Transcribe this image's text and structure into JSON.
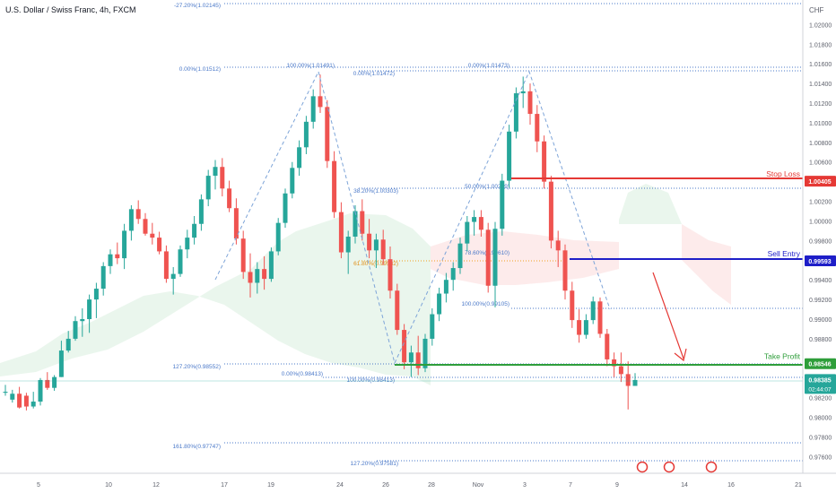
{
  "header": {
    "title": "U.S. Dollar / Swiss Franc, 4h, FXCM"
  },
  "chart_data": {
    "type": "candlestick",
    "currency_label": "CHF",
    "x_tick_labels": [
      "5",
      "10",
      "12",
      "17",
      "19",
      "24",
      "26",
      "28",
      "Nov",
      "3",
      "7",
      "9",
      "14",
      "16",
      "21"
    ],
    "y_tick_labels": [
      "1.02000",
      "1.01800",
      "1.01600",
      "1.01400",
      "1.01200",
      "1.01000",
      "1.00800",
      "1.00600",
      "1.00200",
      "1.00000",
      "0.99800",
      "0.99400",
      "0.99200",
      "0.99000",
      "0.98800",
      "0.98200",
      "0.98000",
      "0.97800",
      "0.97600"
    ],
    "ylim": [
      0.9743,
      1.0225
    ],
    "price_tags": [
      {
        "label": "Stop Loss",
        "value": "1.00405",
        "color": "#e53935"
      },
      {
        "label": "Sell Entry",
        "value": "0.99593",
        "color": "#1e1ec8"
      },
      {
        "label": "Take Profit",
        "value": "0.98546",
        "color": "#2e9e3a"
      },
      {
        "label": "",
        "value": "0.98385",
        "sub": "02:44:07",
        "color": "#26a69a"
      }
    ],
    "fib_labels": [
      "-27.20%(1.02145)",
      "0.00%(1.01512)",
      "100.00%(1.01491)",
      "0.00%(1.01472)",
      "0.00%(1.01473)",
      "38.20%(1.00303)",
      "50.00%(1.00289)",
      "61.80%(0.99582)",
      "78.60%(0.99610)",
      "100.00%(0.99105)",
      "127.20%(0.98552)",
      "0.00%(0.98413)",
      "100.00%(0.98413)",
      "161.80%(0.97747)",
      "127.20%(0.97581)"
    ],
    "candles": [
      [
        0.9825,
        0.9833,
        0.9822,
        0.9826
      ],
      [
        0.9818,
        0.9828,
        0.9815,
        0.9824
      ],
      [
        0.9824,
        0.9831,
        0.9809,
        0.981
      ],
      [
        0.9822,
        0.9825,
        0.9807,
        0.9811
      ],
      [
        0.9811,
        0.9826,
        0.9809,
        0.9816
      ],
      [
        0.9816,
        0.984,
        0.9812,
        0.9838
      ],
      [
        0.9838,
        0.9846,
        0.9828,
        0.983
      ],
      [
        0.983,
        0.9843,
        0.9827,
        0.9841
      ],
      [
        0.9841,
        0.9878,
        0.9841,
        0.9868
      ],
      [
        0.9868,
        0.9888,
        0.9866,
        0.988
      ],
      [
        0.988,
        0.9903,
        0.9878,
        0.9898
      ],
      [
        0.9898,
        0.9911,
        0.9882,
        0.99
      ],
      [
        0.99,
        0.9925,
        0.9886,
        0.992
      ],
      [
        0.992,
        0.9937,
        0.9901,
        0.9931
      ],
      [
        0.9931,
        0.9958,
        0.9924,
        0.9954
      ],
      [
        0.9954,
        0.9971,
        0.9946,
        0.9966
      ],
      [
        0.9966,
        0.9978,
        0.9956,
        0.9962
      ],
      [
        0.9962,
        0.9997,
        0.9951,
        0.999
      ],
      [
        0.999,
        1.0016,
        0.998,
        1.0012
      ],
      [
        1.0012,
        1.0021,
        0.9997,
        1.0002
      ],
      [
        1.0002,
        1.0008,
        0.9985,
        0.9987
      ],
      [
        0.9987,
        0.9998,
        0.9976,
        0.9983
      ],
      [
        0.9983,
        0.9989,
        0.9966,
        0.9969
      ],
      [
        0.9969,
        0.9975,
        0.9937,
        0.9941
      ],
      [
        0.9941,
        0.9953,
        0.9925,
        0.9946
      ],
      [
        0.9946,
        0.9975,
        0.9943,
        0.9971
      ],
      [
        0.9971,
        0.9991,
        0.9962,
        0.9983
      ],
      [
        0.9983,
        1.0005,
        0.9976,
        0.9997
      ],
      [
        0.9997,
        1.0027,
        0.999,
        1.0022
      ],
      [
        1.0022,
        1.0052,
        1.0015,
        1.0046
      ],
      [
        1.0046,
        1.0062,
        1.0032,
        1.0055
      ],
      [
        1.0055,
        1.0064,
        1.0025,
        1.0033
      ],
      [
        1.0033,
        1.0041,
        1.0009,
        1.0013
      ],
      [
        1.0013,
        1.0023,
        0.9976,
        0.9982
      ],
      [
        0.9982,
        0.999,
        0.9941,
        0.9948
      ],
      [
        0.9948,
        0.9967,
        0.9922,
        0.9937
      ],
      [
        0.9937,
        0.9958,
        0.9926,
        0.9951
      ],
      [
        0.9951,
        0.9964,
        0.993,
        0.9941
      ],
      [
        0.9941,
        0.9973,
        0.9938,
        0.9969
      ],
      [
        0.9969,
        1.0003,
        0.9965,
        0.9998
      ],
      [
        0.9998,
        1.0033,
        0.9993,
        1.0028
      ],
      [
        1.0028,
        1.006,
        1.0023,
        1.0054
      ],
      [
        1.0054,
        1.0082,
        1.0046,
        1.0075
      ],
      [
        1.0075,
        1.0107,
        1.0068,
        1.0101
      ],
      [
        1.0101,
        1.0134,
        1.0094,
        1.0127
      ],
      [
        1.0127,
        1.0149,
        1.011,
        1.0116
      ],
      [
        1.0116,
        1.0123,
        1.0054,
        1.0061
      ],
      [
        1.0061,
        1.0071,
        1.0003,
        1.0009
      ],
      [
        1.0009,
        1.0019,
        0.9962,
        0.9968
      ],
      [
        0.9968,
        0.999,
        0.9946,
        0.9984
      ],
      [
        0.9984,
        1.0016,
        0.9977,
        1.001
      ],
      [
        1.001,
        1.0022,
        0.998,
        0.9987
      ],
      [
        0.9987,
        1.0002,
        0.9962,
        0.997
      ],
      [
        0.997,
        0.9987,
        0.9952,
        0.9981
      ],
      [
        0.9981,
        0.9991,
        0.9955,
        0.9961
      ],
      [
        0.9961,
        0.9974,
        0.9921,
        0.9929
      ],
      [
        0.9929,
        0.9936,
        0.9884,
        0.9889
      ],
      [
        0.9889,
        0.9895,
        0.9849,
        0.9856
      ],
      [
        0.9856,
        0.9873,
        0.9841,
        0.9866
      ],
      [
        0.9866,
        0.9883,
        0.9843,
        0.985
      ],
      [
        0.985,
        0.9885,
        0.9846,
        0.988
      ],
      [
        0.988,
        0.9911,
        0.9873,
        0.9905
      ],
      [
        0.9905,
        0.9932,
        0.9898,
        0.9926
      ],
      [
        0.9926,
        0.9947,
        0.9917,
        0.994
      ],
      [
        0.994,
        0.9958,
        0.9929,
        0.9952
      ],
      [
        0.9952,
        0.9983,
        0.9946,
        0.9977
      ],
      [
        0.9977,
        1.0005,
        0.9969,
        0.9999
      ],
      [
        0.9999,
        1.0011,
        0.9985,
        1.0004
      ],
      [
        1.0004,
        1.0011,
        0.9984,
        0.9991
      ],
      [
        0.9991,
        0.9998,
        0.9927,
        0.9934
      ],
      [
        0.9934,
        0.9999,
        0.9912,
        0.9992
      ],
      [
        0.9992,
        1.0048,
        0.9985,
        1.0041
      ],
      [
        1.0041,
        1.0098,
        1.0034,
        1.0091
      ],
      [
        1.0091,
        1.0136,
        1.0084,
        1.013
      ],
      [
        1.013,
        1.0147,
        1.0115,
        1.0132
      ],
      [
        1.0132,
        1.014,
        1.0098,
        1.0109
      ],
      [
        1.0109,
        1.0118,
        1.007,
        1.0081
      ],
      [
        1.0081,
        1.0087,
        1.0033,
        1.004
      ],
      [
        1.004,
        1.0046,
        0.9972,
        0.998
      ],
      [
        0.998,
        0.999,
        0.9953,
        0.997
      ],
      [
        0.997,
        0.9976,
        0.992,
        0.9929
      ],
      [
        0.9929,
        0.9938,
        0.9891,
        0.9899
      ],
      [
        0.9899,
        0.991,
        0.9876,
        0.9884
      ],
      [
        0.9884,
        0.9905,
        0.988,
        0.9899
      ],
      [
        0.9899,
        0.9923,
        0.9895,
        0.9918
      ],
      [
        0.9918,
        0.9922,
        0.9881,
        0.9885
      ],
      [
        0.9885,
        0.989,
        0.9852,
        0.9859
      ],
      [
        0.9859,
        0.9866,
        0.9841,
        0.9852
      ],
      [
        0.9852,
        0.9866,
        0.9836,
        0.9844
      ],
      [
        0.9844,
        0.9857,
        0.9808,
        0.9832
      ],
      [
        0.9832,
        0.9845,
        0.9832,
        0.9838
      ]
    ]
  }
}
